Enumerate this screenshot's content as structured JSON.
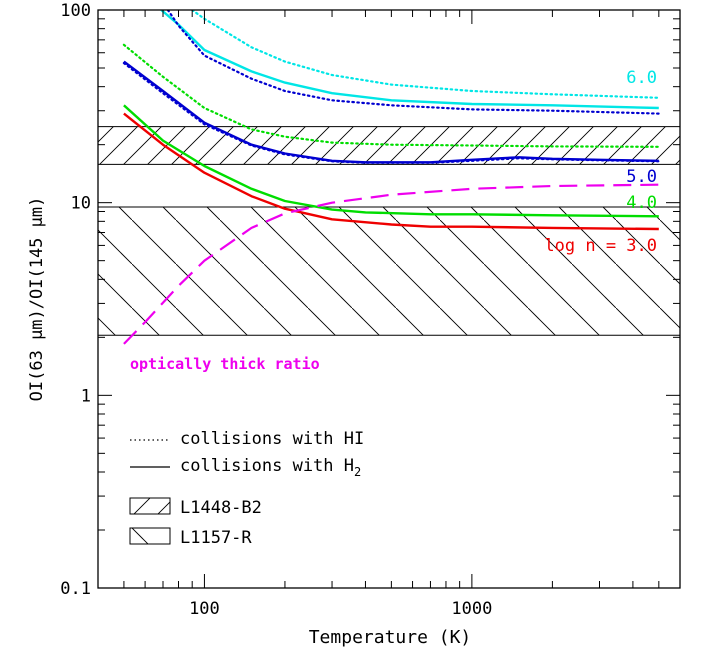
{
  "chart_data": {
    "type": "line",
    "x_scale": "log",
    "y_scale": "log",
    "xlim": [
      40,
      6000
    ],
    "ylim": [
      0.1,
      100
    ],
    "xlabel": "Temperature (K)",
    "ylabel": "OI(63 μm)/OI(145 μm)",
    "x_tick_labels": [
      {
        "value": 100,
        "label": "100"
      },
      {
        "value": 1000,
        "label": "1000"
      }
    ],
    "y_tick_labels": [
      {
        "value": 0.1,
        "label": "0.1"
      },
      {
        "value": 1,
        "label": "1"
      },
      {
        "value": 10,
        "label": "10"
      },
      {
        "value": 100,
        "label": "100"
      }
    ],
    "grid": false,
    "colors": {
      "n6": "#00e6e6",
      "n5": "#0000d0",
      "n4": "#00dd00",
      "n3": "#ee0000",
      "thick": "#ee00ee",
      "frame": "#000000"
    },
    "series": [
      {
        "key": "h2_n6",
        "density": "6.0",
        "collider": "H2",
        "style": "solid",
        "color": "#00e6e6",
        "x": [
          69,
          80,
          100,
          150,
          200,
          300,
          500,
          1000,
          2000,
          5000
        ],
        "y": [
          100,
          84,
          62,
          48,
          42,
          37,
          34,
          32.5,
          32,
          31
        ]
      },
      {
        "key": "hi_n6",
        "density": "6.0",
        "collider": "HI",
        "style": "dotted",
        "color": "#00e6e6",
        "x": [
          90,
          100,
          150,
          200,
          300,
          500,
          1000,
          2000,
          5000
        ],
        "y": [
          100,
          90,
          64,
          54,
          46,
          41,
          38,
          36.5,
          35
        ]
      },
      {
        "key": "hi_n6b",
        "density": "6.0",
        "collider": "HI",
        "style": "dotted",
        "color": "#0000d0",
        "x": [
          73,
          80,
          100,
          150,
          200,
          300,
          500,
          1000,
          2000,
          5000
        ],
        "y": [
          100,
          83,
          58,
          44,
          38,
          34,
          32,
          30.5,
          30,
          29
        ]
      },
      {
        "key": "h2_n5",
        "density": "5.0",
        "collider": "H2",
        "style": "solid",
        "color": "#0000d0",
        "x": [
          50,
          70,
          100,
          150,
          200,
          300,
          400,
          700,
          1000,
          1500,
          2000,
          3000,
          5000
        ],
        "y": [
          54,
          38,
          26,
          20,
          18,
          16.5,
          16.2,
          16.2,
          16.7,
          17.2,
          16.9,
          16.7,
          16.5
        ]
      },
      {
        "key": "hi_n5",
        "density": "5.0",
        "collider": "HI",
        "style": "dotted",
        "color": "#0000d0",
        "x": [
          50,
          70,
          100,
          150,
          200,
          300,
          400,
          700,
          1000,
          1500,
          2000,
          3000,
          5000
        ],
        "y": [
          53,
          37,
          25.5,
          19.8,
          17.8,
          16.4,
          16.1,
          16.1,
          16.5,
          17,
          16.8,
          16.6,
          16.4
        ]
      },
      {
        "key": "hi_n4",
        "density": "4.0",
        "collider": "HI",
        "style": "dotted",
        "color": "#00dd00",
        "x": [
          50,
          70,
          100,
          150,
          200,
          300,
          500,
          1000,
          2000,
          5000
        ],
        "y": [
          66,
          45,
          31,
          24,
          22,
          20.5,
          20,
          19.8,
          19.6,
          19.5
        ]
      },
      {
        "key": "h2_n4",
        "density": "4.0",
        "collider": "H2",
        "style": "solid",
        "color": "#00dd00",
        "x": [
          50,
          70,
          100,
          150,
          200,
          300,
          400,
          700,
          1000,
          2000,
          5000
        ],
        "y": [
          32,
          21,
          15.5,
          11.8,
          10.2,
          9.2,
          8.9,
          8.7,
          8.7,
          8.6,
          8.5
        ]
      },
      {
        "key": "h2_n3",
        "density": "3.0",
        "collider": "H2",
        "style": "solid",
        "color": "#ee0000",
        "x": [
          50,
          70,
          100,
          150,
          200,
          300,
          500,
          700,
          1000,
          2000,
          5000
        ],
        "y": [
          29,
          20,
          14.3,
          10.8,
          9.3,
          8.2,
          7.7,
          7.5,
          7.5,
          7.4,
          7.3
        ]
      },
      {
        "key": "thick",
        "density": "",
        "collider": "",
        "style": "dashed",
        "color": "#ee00ee",
        "x": [
          50,
          60,
          80,
          100,
          150,
          200,
          300,
          500,
          1000,
          2000,
          5000
        ],
        "y": [
          1.85,
          2.4,
          3.7,
          5.0,
          7.4,
          8.8,
          10.0,
          11.0,
          11.8,
          12.2,
          12.4
        ]
      }
    ],
    "bands": [
      {
        "key": "l1448",
        "label": "L1448-B2",
        "y": [
          15.8,
          24.8
        ],
        "hatch": "forward"
      },
      {
        "key": "l1157",
        "label": "L1157-R",
        "y": [
          2.05,
          9.5
        ],
        "hatch": "back"
      }
    ],
    "annotations": {
      "label_6": "6.0",
      "label_5": "5.0",
      "label_4": "4.0",
      "label_3": "log n = 3.0",
      "thick_label": "optically thick ratio"
    },
    "legend": {
      "hi": "collisions with HI",
      "h2_prefix": "collisions with H",
      "h2_sub": "2",
      "l1448": "L1448-B2",
      "l1157": "L1157-R"
    }
  }
}
